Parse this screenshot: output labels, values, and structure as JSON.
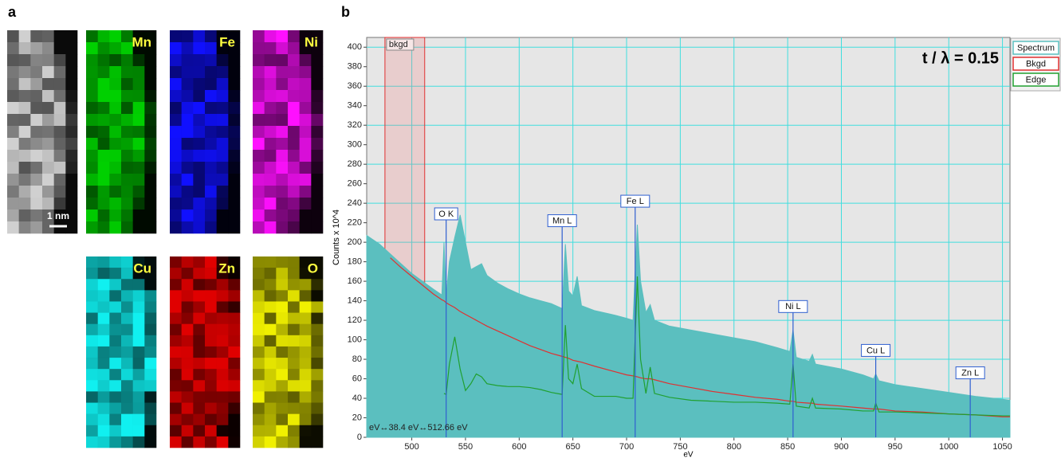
{
  "panel_a": {
    "label": "a",
    "scale_bar": "1 nm",
    "maps": [
      {
        "color": "#d0d0d0"
      },
      {
        "label": "Mn",
        "color": "#00d000"
      },
      {
        "label": "Fe",
        "color": "#1010ff"
      },
      {
        "label": "Ni",
        "color": "#ff10ff"
      },
      {
        "label": "Cu",
        "color": "#10f0f0"
      },
      {
        "label": "Zn",
        "color": "#e00000"
      },
      {
        "label": "O",
        "color": "#f0f000"
      }
    ]
  },
  "chart_data": {
    "type": "area",
    "panel_label": "b",
    "annotation": "t / λ = 0.15",
    "x_label": "eV",
    "y_label": "Counts x 10^4",
    "readout": "eV↔38.4 eV↔512.66 eV",
    "grid": true,
    "legend": "right",
    "xlim": [
      458,
      1057
    ],
    "ylim": [
      0,
      410
    ],
    "xticks": [
      500,
      550,
      600,
      650,
      700,
      750,
      800,
      850,
      900,
      950,
      1000,
      1050
    ],
    "yticks": [
      0,
      20,
      40,
      60,
      80,
      100,
      120,
      140,
      160,
      180,
      200,
      220,
      240,
      260,
      280,
      300,
      320,
      340,
      360,
      380,
      400
    ],
    "background_window": {
      "label": "bkgd",
      "range": [
        475,
        512
      ]
    },
    "edges": [
      {
        "label": "O K",
        "value": 532
      },
      {
        "label": "Mn L",
        "value": 640
      },
      {
        "label": "Fe L",
        "value": 708
      },
      {
        "label": "Ni L",
        "value": 855
      },
      {
        "label": "Cu L",
        "value": 932
      },
      {
        "label": "Zn L",
        "value": 1020
      }
    ],
    "x": [
      458,
      470,
      480,
      490,
      500,
      510,
      520,
      528,
      530,
      532,
      535,
      540,
      545,
      550,
      555,
      560,
      565,
      570,
      580,
      590,
      600,
      610,
      620,
      630,
      640,
      643,
      646,
      650,
      654,
      658,
      670,
      690,
      700,
      706,
      710,
      713,
      718,
      722,
      726,
      740,
      760,
      780,
      800,
      820,
      840,
      852,
      855,
      858,
      870,
      873,
      876,
      900,
      920,
      930,
      932,
      935,
      950,
      975,
      1000,
      1025,
      1050,
      1057
    ],
    "series": [
      {
        "name": "Spectrum",
        "color": "#5bbfbf",
        "values": [
          207,
          198,
          188,
          178,
          168,
          160,
          152,
          146,
          200,
          145,
          180,
          205,
          228,
          200,
          172,
          175,
          178,
          166,
          158,
          152,
          147,
          143,
          140,
          137,
          132,
          198,
          150,
          145,
          165,
          135,
          130,
          125,
          122,
          120,
          218,
          160,
          128,
          136,
          120,
          114,
          110,
          106,
          102,
          98,
          92,
          88,
          110,
          82,
          78,
          85,
          75,
          70,
          64,
          60,
          65,
          58,
          54,
          50,
          46,
          42,
          39,
          38
        ]
      },
      {
        "name": "Bkgd",
        "color": "#e03030",
        "values": [
          null,
          null,
          184,
          174,
          165,
          156,
          147,
          141,
          140,
          138,
          136,
          133,
          129,
          126,
          123,
          120,
          117,
          114,
          109,
          104,
          99,
          94,
          90,
          86,
          83,
          82,
          81,
          79,
          78,
          77,
          73,
          67,
          64,
          63,
          62,
          61,
          60,
          60,
          59,
          55,
          51,
          47,
          44,
          41,
          39,
          37,
          37,
          36,
          35,
          35,
          34,
          32,
          30,
          29,
          29,
          29,
          27,
          26,
          24,
          23,
          21,
          21
        ]
      },
      {
        "name": "Edge",
        "color": "#20a030",
        "values": [
          null,
          null,
          null,
          null,
          null,
          null,
          null,
          null,
          45,
          44,
          75,
          103,
          70,
          48,
          55,
          65,
          62,
          55,
          53,
          52,
          52,
          51,
          49,
          46,
          44,
          115,
          60,
          55,
          75,
          50,
          42,
          42,
          40,
          40,
          165,
          80,
          45,
          72,
          45,
          41,
          38,
          37,
          36,
          36,
          35,
          34,
          75,
          32,
          30,
          40,
          30,
          29,
          27,
          27,
          35,
          26,
          26,
          25,
          24,
          23,
          22,
          22
        ]
      }
    ]
  }
}
